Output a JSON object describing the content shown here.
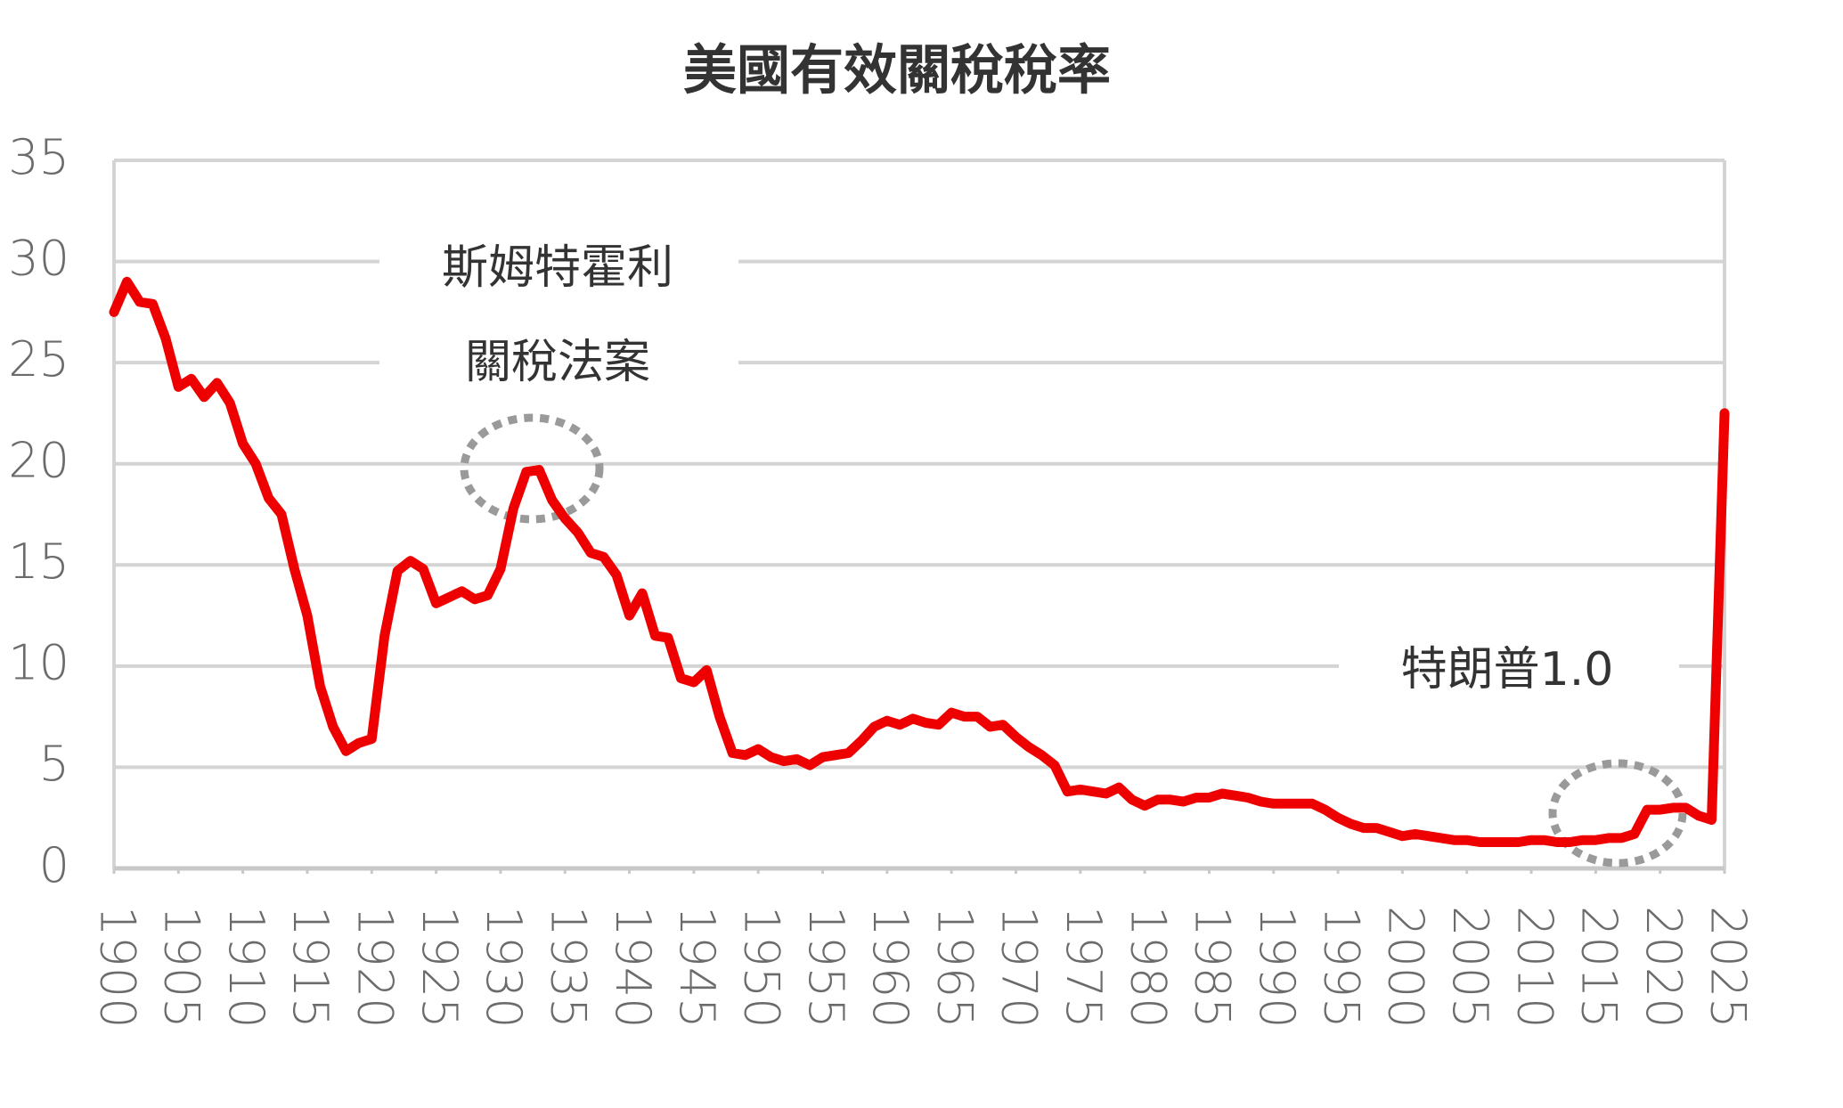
{
  "chart_data": {
    "type": "line",
    "title": "美國有效關稅稅率",
    "x": [
      1900,
      1901,
      1902,
      1903,
      1904,
      1905,
      1906,
      1907,
      1908,
      1909,
      1910,
      1911,
      1912,
      1913,
      1914,
      1915,
      1916,
      1917,
      1918,
      1919,
      1920,
      1921,
      1922,
      1923,
      1924,
      1925,
      1926,
      1927,
      1928,
      1929,
      1930,
      1931,
      1932,
      1933,
      1934,
      1935,
      1936,
      1937,
      1938,
      1939,
      1940,
      1941,
      1942,
      1943,
      1944,
      1945,
      1946,
      1947,
      1948,
      1949,
      1950,
      1951,
      1952,
      1953,
      1954,
      1955,
      1956,
      1957,
      1958,
      1959,
      1960,
      1961,
      1962,
      1963,
      1964,
      1965,
      1966,
      1967,
      1968,
      1969,
      1970,
      1971,
      1972,
      1973,
      1974,
      1975,
      1976,
      1977,
      1978,
      1979,
      1980,
      1981,
      1982,
      1983,
      1984,
      1985,
      1986,
      1987,
      1988,
      1989,
      1990,
      1991,
      1992,
      1993,
      1994,
      1995,
      1996,
      1997,
      1998,
      1999,
      2000,
      2001,
      2002,
      2003,
      2004,
      2005,
      2006,
      2007,
      2008,
      2009,
      2010,
      2011,
      2012,
      2013,
      2014,
      2015,
      2016,
      2017,
      2018,
      2019,
      2020,
      2021,
      2022,
      2023,
      2024,
      2025
    ],
    "values": [
      27.5,
      29,
      28,
      27.9,
      26.2,
      23.8,
      24.2,
      23.3,
      24,
      23,
      21,
      20,
      18.3,
      17.5,
      14.8,
      12.5,
      9,
      7,
      5.8,
      6.2,
      6.4,
      11.5,
      14.7,
      15.2,
      14.8,
      13.1,
      13.4,
      13.7,
      13.3,
      13.5,
      14.8,
      17.8,
      19.6,
      19.7,
      18.2,
      17.3,
      16.6,
      15.6,
      15.4,
      14.5,
      12.5,
      13.6,
      11.5,
      11.4,
      9.4,
      9.2,
      9.8,
      7.5,
      5.7,
      5.6,
      5.9,
      5.5,
      5.3,
      5.4,
      5.1,
      5.5,
      5.6,
      5.7,
      6.3,
      7,
      7.3,
      7.1,
      7.4,
      7.2,
      7.1,
      7.7,
      7.5,
      7.5,
      7.0,
      7.1,
      6.5,
      6.0,
      5.6,
      5.1,
      3.8,
      3.9,
      3.8,
      3.7,
      4.0,
      3.4,
      3.1,
      3.4,
      3.4,
      3.3,
      3.5,
      3.5,
      3.7,
      3.6,
      3.5,
      3.3,
      3.2,
      3.2,
      3.2,
      3.2,
      2.9,
      2.5,
      2.2,
      2.0,
      2.0,
      1.8,
      1.6,
      1.7,
      1.6,
      1.5,
      1.4,
      1.4,
      1.3,
      1.3,
      1.3,
      1.3,
      1.4,
      1.4,
      1.3,
      1.3,
      1.4,
      1.4,
      1.5,
      1.5,
      1.7,
      2.9,
      2.9,
      3.0,
      3.0,
      2.6,
      2.4,
      22.5
    ],
    "color": "#ee0000",
    "xlim": [
      1900,
      2025
    ],
    "xticks": [
      1900,
      1905,
      1910,
      1915,
      1920,
      1925,
      1930,
      1935,
      1940,
      1945,
      1950,
      1955,
      1960,
      1965,
      1970,
      1975,
      1980,
      1985,
      1990,
      1995,
      2000,
      2005,
      2010,
      2015,
      2020,
      2025
    ],
    "ylim": [
      0,
      35
    ],
    "yticks": [
      0,
      5,
      10,
      15,
      20,
      25,
      30,
      35
    ],
    "grid": true,
    "annotations": [
      "斯姆特霍利",
      "關稅法案",
      "特朗普1.0"
    ]
  }
}
